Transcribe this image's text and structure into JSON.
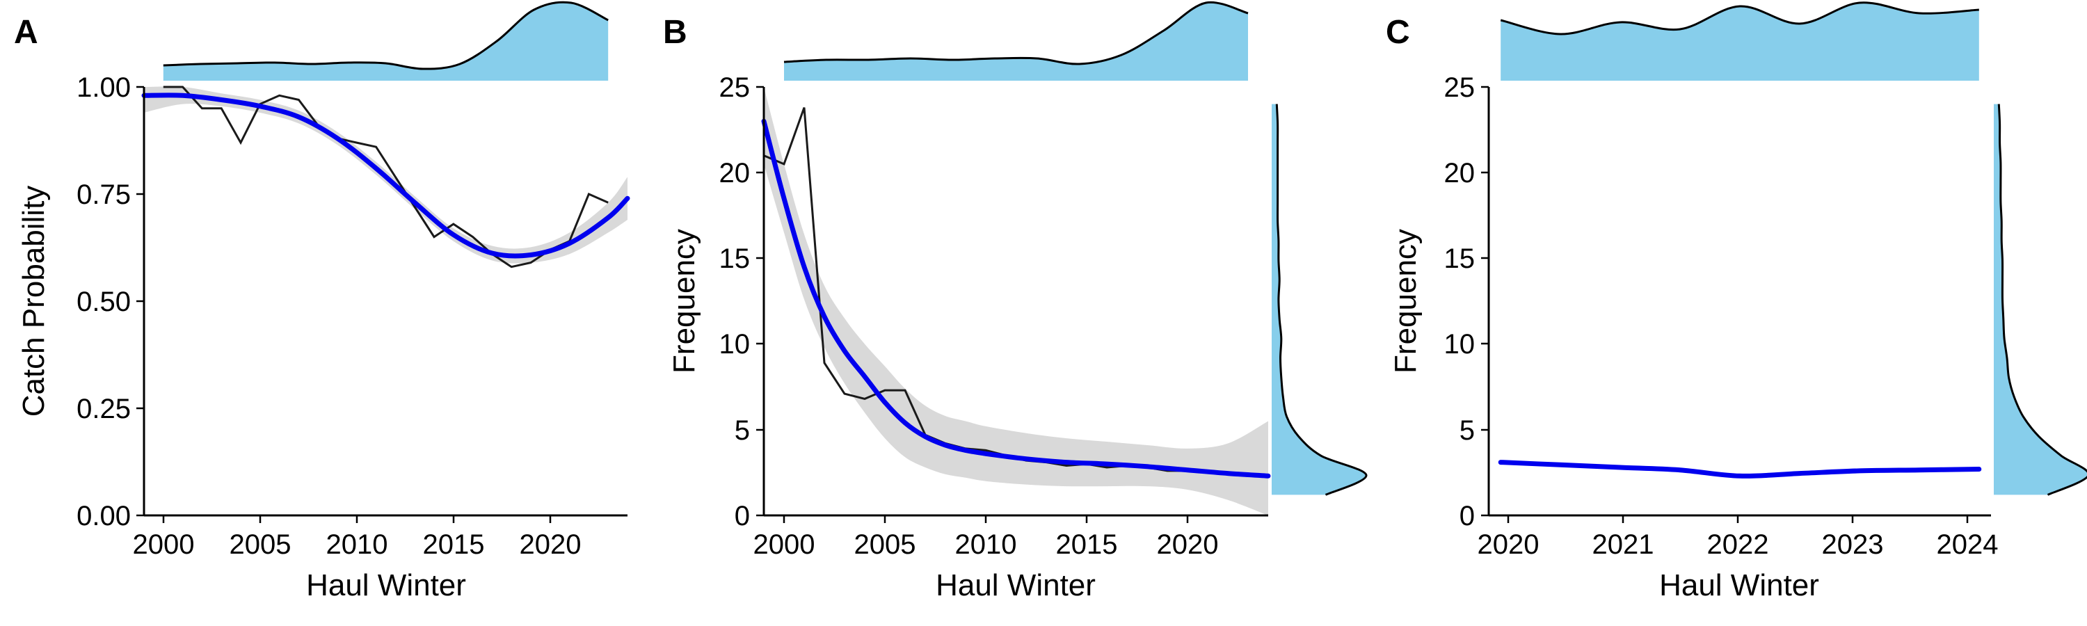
{
  "colors": {
    "fit": "#0000ee",
    "raw": "#1a1a1a",
    "band": "#d9d9d9",
    "density": "#87ceeb",
    "density_edge": "#000000"
  },
  "chart_data": [
    {
      "panel": "A",
      "type": "line",
      "xlabel": "Haul Winter",
      "ylabel": "Catch Probability",
      "xlim": [
        1999,
        2024
      ],
      "ylim": [
        0,
        1
      ],
      "x_ticks": [
        2000,
        2005,
        2010,
        2015,
        2020
      ],
      "y_ticks": [
        "0.00",
        "0.25",
        "0.50",
        "0.75",
        "1.00"
      ],
      "raw": {
        "x": [
          2000,
          2001,
          2002,
          2003,
          2004,
          2005,
          2006,
          2007,
          2008,
          2009,
          2010,
          2011,
          2012,
          2013,
          2014,
          2015,
          2016,
          2017,
          2018,
          2019,
          2020,
          2021,
          2022,
          2023
        ],
        "y": [
          1.0,
          1.0,
          0.95,
          0.95,
          0.87,
          0.96,
          0.98,
          0.97,
          0.91,
          0.88,
          0.87,
          0.86,
          0.79,
          0.72,
          0.65,
          0.68,
          0.65,
          0.61,
          0.58,
          0.59,
          0.62,
          0.64,
          0.75,
          0.73
        ]
      },
      "fit": {
        "x": [
          1999,
          2001,
          2003,
          2005,
          2007,
          2009,
          2011,
          2013,
          2015,
          2017,
          2019,
          2021,
          2023,
          2024
        ],
        "y": [
          0.98,
          0.98,
          0.97,
          0.955,
          0.93,
          0.88,
          0.81,
          0.73,
          0.655,
          0.612,
          0.608,
          0.635,
          0.695,
          0.74
        ],
        "lower": [
          0.94,
          0.96,
          0.955,
          0.94,
          0.915,
          0.865,
          0.795,
          0.715,
          0.64,
          0.595,
          0.59,
          0.61,
          0.66,
          0.69
        ],
        "upper": [
          1.0,
          1.0,
          0.985,
          0.97,
          0.945,
          0.895,
          0.825,
          0.745,
          0.67,
          0.629,
          0.626,
          0.66,
          0.73,
          0.79
        ]
      },
      "top_density": {
        "x_from": 2000,
        "x_to": 2023,
        "values": [
          0.1,
          0.12,
          0.13,
          0.14,
          0.12,
          0.14,
          0.13,
          0.05,
          0.12,
          0.45,
          0.9,
          1.0,
          0.75
        ]
      }
    },
    {
      "panel": "B",
      "type": "line",
      "xlabel": "Haul Winter",
      "ylabel": "Frequency",
      "xlim": [
        1999,
        2024
      ],
      "ylim": [
        0,
        25
      ],
      "x_ticks": [
        2000,
        2005,
        2010,
        2015,
        2020
      ],
      "y_ticks": [
        "0",
        "5",
        "10",
        "15",
        "20",
        "25"
      ],
      "raw": {
        "x": [
          1999,
          2000,
          2001,
          2002,
          2003,
          2004,
          2005,
          2006,
          2007,
          2008,
          2009,
          2010,
          2011,
          2012,
          2013,
          2014,
          2015,
          2016,
          2017,
          2018,
          2019,
          2020,
          2021,
          2022,
          2023,
          2024
        ],
        "y": [
          21.0,
          20.5,
          23.8,
          8.9,
          7.1,
          6.8,
          7.3,
          7.3,
          4.7,
          4.2,
          3.9,
          3.8,
          3.5,
          3.2,
          3.1,
          2.9,
          3.0,
          2.8,
          2.9,
          2.8,
          2.6,
          2.6,
          2.5,
          2.4,
          2.3,
          2.3
        ]
      },
      "fit": {
        "x": [
          1999,
          2000,
          2001,
          2002,
          2003,
          2004,
          2005,
          2006,
          2007,
          2008,
          2009,
          2010,
          2012,
          2014,
          2016,
          2018,
          2020,
          2022,
          2024
        ],
        "y": [
          23.0,
          18.5,
          14.5,
          11.6,
          9.6,
          8.1,
          6.6,
          5.4,
          4.6,
          4.1,
          3.8,
          3.6,
          3.3,
          3.1,
          3.0,
          2.85,
          2.65,
          2.45,
          2.3
        ],
        "lower": [
          20.5,
          16.5,
          12.6,
          9.8,
          7.7,
          6.0,
          4.5,
          3.4,
          2.8,
          2.4,
          2.2,
          2.0,
          1.8,
          1.7,
          1.7,
          1.7,
          1.5,
          0.9,
          0.0
        ],
        "upper": [
          25.0,
          20.5,
          16.4,
          13.4,
          11.5,
          10.0,
          8.7,
          7.4,
          6.4,
          5.8,
          5.5,
          5.2,
          4.8,
          4.5,
          4.3,
          4.1,
          3.9,
          4.2,
          5.5
        ]
      },
      "top_density": {
        "x_from": 2000,
        "x_to": 2023,
        "values": [
          0.15,
          0.18,
          0.18,
          0.2,
          0.18,
          0.2,
          0.2,
          0.12,
          0.25,
          0.6,
          1.0,
          0.85
        ]
      },
      "side_density": {
        "y_from": 1.2,
        "y_to": 24,
        "values": [
          0.55,
          1.0,
          0.5,
          0.25,
          0.12,
          0.08,
          0.06,
          0.05,
          0.06,
          0.04,
          0.03,
          0.04,
          0.03,
          0.03,
          0.02,
          0.02,
          0.02,
          0.02,
          0.02,
          0.02,
          0.01
        ]
      }
    },
    {
      "panel": "C",
      "type": "line",
      "xlabel": "Haul Winter",
      "ylabel": "Frequency",
      "xlim": [
        2019.9,
        2024.1
      ],
      "ylim": [
        0,
        25
      ],
      "x_ticks": [
        2020,
        2021,
        2022,
        2023,
        2024
      ],
      "y_ticks": [
        "0",
        "5",
        "10",
        "15",
        "20",
        "25"
      ],
      "fit": {
        "x": [
          2020,
          2020.5,
          2021,
          2021.5,
          2022,
          2022.5,
          2023,
          2023.5,
          2024
        ],
        "y": [
          3.1,
          2.95,
          2.8,
          2.65,
          2.3,
          2.45,
          2.6,
          2.65,
          2.7
        ]
      },
      "top_density": {
        "x_from": 2020,
        "x_to": 2024,
        "values": [
          0.75,
          0.55,
          0.72,
          0.62,
          0.95,
          0.7,
          1.0,
          0.85,
          0.9
        ]
      },
      "side_density": {
        "y_from": 1.2,
        "y_to": 24,
        "values": [
          0.55,
          1.0,
          0.7,
          0.45,
          0.28,
          0.18,
          0.12,
          0.1,
          0.07,
          0.06,
          0.05,
          0.05,
          0.05,
          0.04,
          0.04,
          0.03,
          0.03,
          0.03,
          0.02,
          0.02,
          0.01
        ]
      }
    }
  ]
}
